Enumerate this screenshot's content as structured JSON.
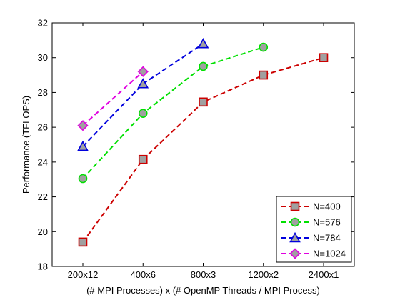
{
  "chart_data": {
    "type": "line",
    "categories": [
      "200x12",
      "400x6",
      "800x3",
      "1200x2",
      "2400x1"
    ],
    "xlabel": "(# MPI Processes) x (# OpenMP Threads / MPI Process)",
    "ylabel": "Performance (TFLOPS)",
    "ylim": [
      18,
      32
    ],
    "yticks": [
      18,
      20,
      22,
      24,
      26,
      28,
      30,
      32
    ],
    "grid": false,
    "legend_position": "bottom-right",
    "series": [
      {
        "name": "N=400",
        "color": "#cc0000",
        "fill": "#a0a0a0",
        "marker": "square",
        "values": [
          19.4,
          24.15,
          27.45,
          29.0,
          30.0
        ]
      },
      {
        "name": "N=576",
        "color": "#00e000",
        "fill": "#a0a0a0",
        "marker": "circle",
        "values": [
          23.05,
          26.8,
          29.5,
          30.6,
          null
        ]
      },
      {
        "name": "N=784",
        "color": "#0000dd",
        "fill": "#a0a0a0",
        "marker": "triangle",
        "values": [
          24.9,
          28.5,
          30.8,
          null,
          null
        ]
      },
      {
        "name": "N=1024",
        "color": "#e000e0",
        "fill": "#a0a0a0",
        "marker": "diamond",
        "values": [
          26.1,
          29.2,
          null,
          null,
          null
        ]
      }
    ]
  }
}
